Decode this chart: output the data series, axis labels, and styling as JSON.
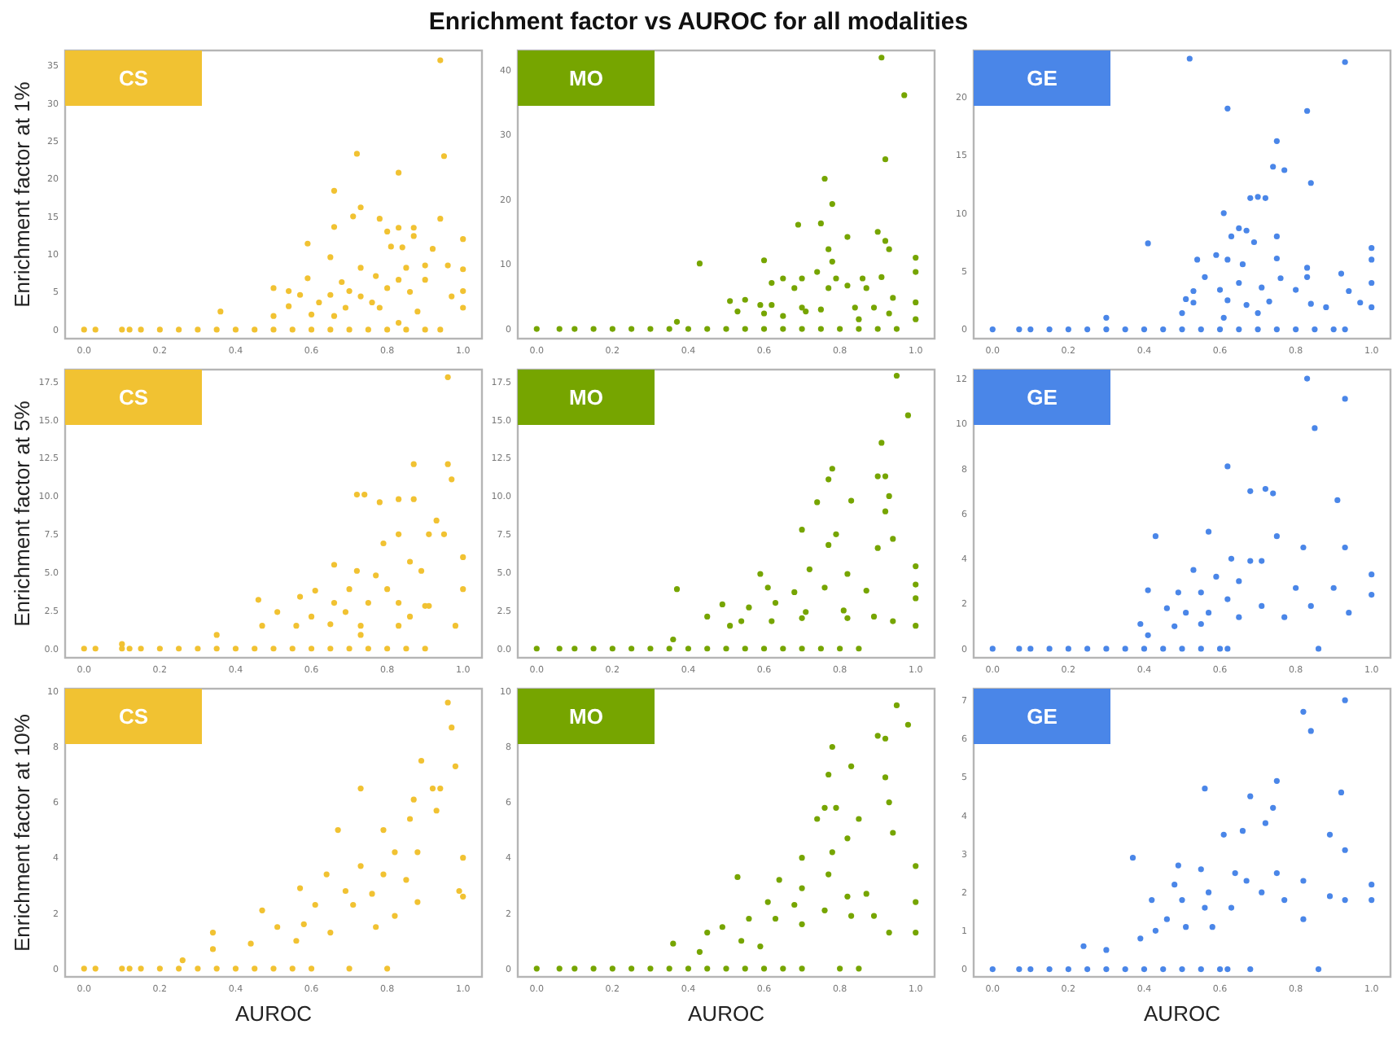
{
  "chart_data": [
    {
      "type": "scatter",
      "title": "CS",
      "annotations": [
        "Enrichment factor vs AUROC for all modalities"
      ],
      "ylabel": "Enrichment factor at 1%",
      "marker": "circle",
      "xlim": [
        -0.05,
        1.05
      ],
      "xticks": [
        {
          "value": 0,
          "label": "0.0"
        },
        {
          "value": 0.2,
          "label": "0.2"
        },
        {
          "value": 0.4,
          "label": "0.4"
        },
        {
          "value": 0.6,
          "label": "0.6"
        },
        {
          "value": 0.8,
          "label": "0.8"
        },
        {
          "value": 1,
          "label": "1.0"
        }
      ],
      "ylim": [
        -1.2,
        37
      ],
      "yticks": [
        0,
        5,
        10,
        15,
        20,
        25,
        30,
        35
      ],
      "series": [
        {
          "color": "#f1c232",
          "x": [
            0.94,
            0.95,
            0.72,
            0.83,
            0.66,
            0.73,
            0.71,
            0.78,
            0.94,
            0.83,
            0.8,
            0.87,
            1.0,
            0.66,
            0.59,
            0.81,
            0.87,
            0.92,
            0.65,
            0.84,
            0.73,
            0.85,
            0.9,
            0.96,
            1.0,
            0.59,
            0.77,
            0.83,
            0.9,
            0.68,
            0.5,
            0.54,
            0.65,
            0.7,
            0.73,
            0.8,
            0.86,
            0.97,
            1.0,
            0.54,
            0.57,
            0.62,
            0.69,
            0.76,
            0.88,
            0.36,
            0.5,
            0.6,
            0.66,
            0.78,
            0.83,
            1.0,
            0,
            0.03,
            0.1,
            0.12,
            0.15,
            0.2,
            0.25,
            0.3,
            0.35,
            0.4,
            0.45,
            0.5,
            0.55,
            0.6,
            0.65,
            0.7,
            0.75,
            0.8,
            0.85,
            0.9,
            0.94
          ],
          "values": [
            35.7,
            23,
            23.3,
            20.8,
            18.4,
            16.2,
            15,
            14.7,
            14.7,
            13.5,
            13,
            13.5,
            12,
            13.6,
            11.4,
            11,
            12.4,
            10.7,
            9.6,
            10.9,
            8.2,
            8.2,
            8.5,
            8.5,
            8,
            6.8,
            7.1,
            6.6,
            6.6,
            6.3,
            5.5,
            5.1,
            4.6,
            5.1,
            4.4,
            5.5,
            5,
            4.4,
            5.1,
            3.1,
            4.6,
            3.6,
            2.9,
            3.6,
            2.4,
            2.4,
            1.8,
            2,
            1.8,
            2.9,
            0.9,
            2.9,
            0,
            0,
            0,
            0,
            0,
            0,
            0,
            0,
            0,
            0,
            0,
            0,
            0,
            0,
            0,
            0,
            0,
            0,
            0,
            0,
            0
          ]
        }
      ]
    },
    {
      "type": "scatter",
      "title": "MO",
      "marker": "circle",
      "xlim": [
        -0.05,
        1.05
      ],
      "xticks": [
        {
          "value": 0,
          "label": "0.0"
        },
        {
          "value": 0.2,
          "label": "0.2"
        },
        {
          "value": 0.4,
          "label": "0.4"
        },
        {
          "value": 0.6,
          "label": "0.6"
        },
        {
          "value": 0.8,
          "label": "0.8"
        },
        {
          "value": 1,
          "label": "1.0"
        }
      ],
      "ylim": [
        -1.5,
        43
      ],
      "yticks": [
        0,
        10,
        20,
        30,
        40
      ],
      "series": [
        {
          "color": "#76a500",
          "x": [
            0.91,
            0.97,
            0.92,
            0.76,
            0.78,
            0.69,
            0.75,
            0.9,
            0.82,
            0.92,
            0.77,
            0.93,
            0.43,
            0.6,
            1.0,
            0.78,
            0.65,
            0.7,
            0.74,
            0.79,
            0.86,
            0.91,
            1.0,
            0.62,
            0.68,
            0.77,
            0.82,
            0.87,
            0.51,
            0.55,
            0.59,
            0.62,
            0.7,
            0.75,
            0.84,
            0.89,
            0.94,
            1.0,
            0.53,
            0.6,
            0.65,
            0.71,
            0.85,
            0.93,
            1.0,
            0.37,
            0,
            0.06,
            0.1,
            0.15,
            0.2,
            0.25,
            0.3,
            0.35,
            0.4,
            0.45,
            0.5,
            0.55,
            0.6,
            0.65,
            0.7,
            0.75,
            0.8,
            0.85,
            0.9,
            0.95
          ],
          "values": [
            41.9,
            36.1,
            26.2,
            23.2,
            19.3,
            16.1,
            16.3,
            15,
            14.2,
            13.6,
            12.3,
            12.3,
            10.1,
            10.6,
            11,
            10.4,
            7.8,
            7.8,
            8.8,
            7.8,
            7.8,
            8,
            8.8,
            7.1,
            6.3,
            6.3,
            6.7,
            6.3,
            4.3,
            4.5,
            3.7,
            3.7,
            3.3,
            3,
            3.3,
            3.3,
            4.8,
            4.1,
            2.7,
            2.4,
            2,
            2.7,
            1.5,
            2.4,
            1.5,
            1.1,
            0,
            0,
            0,
            0,
            0,
            0,
            0,
            0,
            0,
            0,
            0,
            0,
            0,
            0,
            0,
            0,
            0,
            0,
            0,
            0
          ]
        }
      ]
    },
    {
      "type": "scatter",
      "title": "GE",
      "marker": "circle",
      "xlim": [
        -0.05,
        1.05
      ],
      "xticks": [
        {
          "value": 0,
          "label": "0.0"
        },
        {
          "value": 0.2,
          "label": "0.2"
        },
        {
          "value": 0.4,
          "label": "0.4"
        },
        {
          "value": 0.6,
          "label": "0.6"
        },
        {
          "value": 0.8,
          "label": "0.8"
        },
        {
          "value": 1,
          "label": "1.0"
        }
      ],
      "ylim": [
        -0.8,
        24
      ],
      "yticks": [
        0,
        5,
        10,
        15,
        20
      ],
      "series": [
        {
          "color": "#4a86e8",
          "x": [
            0.52,
            0.93,
            0.62,
            0.83,
            0.75,
            0.74,
            0.77,
            0.84,
            0.68,
            0.7,
            0.72,
            0.61,
            0.41,
            0.63,
            0.65,
            0.67,
            0.69,
            0.75,
            0.62,
            0.59,
            0.66,
            0.75,
            0.54,
            0.83,
            1.0,
            1.0,
            0.92,
            0.56,
            0.65,
            0.76,
            0.83,
            1.0,
            0.53,
            0.6,
            0.71,
            0.8,
            0.94,
            0.51,
            0.53,
            0.62,
            0.67,
            0.73,
            0.84,
            0.88,
            0.97,
            1.0,
            0.5,
            0.7,
            0.61,
            0.3,
            0,
            0.07,
            0.1,
            0.15,
            0.2,
            0.25,
            0.3,
            0.35,
            0.4,
            0.45,
            0.5,
            0.55,
            0.6,
            0.65,
            0.7,
            0.75,
            0.8,
            0.85,
            0.9,
            0.93
          ],
          "values": [
            23.3,
            23,
            19,
            18.8,
            16.2,
            14,
            13.7,
            12.6,
            11.3,
            11.4,
            11.3,
            10,
            7.4,
            8,
            8.7,
            8.5,
            7.5,
            8,
            6,
            6.4,
            5.6,
            6.1,
            6,
            5.3,
            7,
            6,
            4.8,
            4.5,
            4,
            4.4,
            4.5,
            4,
            3.3,
            3.4,
            3.6,
            3.4,
            3.3,
            2.6,
            2.3,
            2.5,
            2.1,
            2.4,
            2.2,
            1.9,
            2.3,
            1.9,
            1.4,
            1.4,
            1,
            1,
            0,
            0,
            0,
            0,
            0,
            0,
            0,
            0,
            0,
            0,
            0,
            0,
            0,
            0,
            0,
            0,
            0,
            0,
            0,
            0
          ]
        }
      ]
    },
    {
      "type": "scatter",
      "title": "CS",
      "ylabel": "Enrichment factor at 5%",
      "marker": "circle",
      "xlim": [
        -0.05,
        1.05
      ],
      "xticks": [
        {
          "value": 0,
          "label": "0.0"
        },
        {
          "value": 0.2,
          "label": "0.2"
        },
        {
          "value": 0.4,
          "label": "0.4"
        },
        {
          "value": 0.6,
          "label": "0.6"
        },
        {
          "value": 0.8,
          "label": "0.8"
        },
        {
          "value": 1,
          "label": "1.0"
        }
      ],
      "ylim": [
        -0.6,
        18.3
      ],
      "yticks": [
        {
          "value": 0,
          "label": "0.0"
        },
        {
          "value": 2.5,
          "label": "2.5"
        },
        {
          "value": 5,
          "label": "5.0"
        },
        {
          "value": 7.5,
          "label": "7.5"
        },
        {
          "value": 10,
          "label": "10.0"
        },
        {
          "value": 12.5,
          "label": "12.5"
        },
        {
          "value": 15,
          "label": "15.0"
        },
        {
          "value": 17.5,
          "label": "17.5"
        }
      ],
      "series": [
        {
          "color": "#f1c232",
          "x": [
            0.96,
            0.87,
            0.96,
            0.97,
            0.72,
            0.74,
            0.78,
            0.83,
            0.87,
            0.93,
            0.91,
            0.95,
            1.0,
            0.83,
            0.79,
            0.86,
            0.66,
            0.72,
            0.77,
            0.89,
            1.0,
            0.61,
            0.7,
            0.8,
            0.46,
            0.57,
            0.66,
            0.75,
            0.83,
            0.9,
            0.51,
            0.6,
            0.69,
            0.86,
            0.47,
            0.56,
            0.65,
            0.73,
            0.83,
            0.91,
            0.98,
            0.35,
            0.1,
            0.73,
            0,
            0.03,
            0.1,
            0.12,
            0.15,
            0.2,
            0.25,
            0.3,
            0.35,
            0.4,
            0.45,
            0.5,
            0.55,
            0.6,
            0.65,
            0.7,
            0.75,
            0.8,
            0.85,
            0.9
          ],
          "values": [
            17.8,
            12.1,
            12.1,
            11.1,
            10.1,
            10.1,
            9.6,
            9.8,
            9.8,
            8.4,
            7.5,
            7.5,
            6,
            7.5,
            6.9,
            5.7,
            5.5,
            5.1,
            4.8,
            5.1,
            3.9,
            3.8,
            3.9,
            3.9,
            3.2,
            3.4,
            3,
            3,
            3,
            2.8,
            2.4,
            2.1,
            2.4,
            2.1,
            1.5,
            1.5,
            1.6,
            1.5,
            1.5,
            2.8,
            1.5,
            0.9,
            0.3,
            0.9,
            0,
            0,
            0,
            0,
            0,
            0,
            0,
            0,
            0,
            0,
            0,
            0,
            0,
            0,
            0,
            0,
            0,
            0,
            0,
            0
          ]
        }
      ]
    },
    {
      "type": "scatter",
      "title": "MO",
      "marker": "circle",
      "xlim": [
        -0.05,
        1.05
      ],
      "xticks": [
        {
          "value": 0,
          "label": "0.0"
        },
        {
          "value": 0.2,
          "label": "0.2"
        },
        {
          "value": 0.4,
          "label": "0.4"
        },
        {
          "value": 0.6,
          "label": "0.6"
        },
        {
          "value": 0.8,
          "label": "0.8"
        },
        {
          "value": 1,
          "label": "1.0"
        }
      ],
      "ylim": [
        -0.6,
        18.3
      ],
      "yticks": [
        {
          "value": 0,
          "label": "0.0"
        },
        {
          "value": 2.5,
          "label": "2.5"
        },
        {
          "value": 5,
          "label": "5.0"
        },
        {
          "value": 7.5,
          "label": "7.5"
        },
        {
          "value": 10,
          "label": "10.0"
        },
        {
          "value": 12.5,
          "label": "12.5"
        },
        {
          "value": 15,
          "label": "15.0"
        },
        {
          "value": 17.5,
          "label": "17.5"
        }
      ],
      "series": [
        {
          "color": "#76a500",
          "x": [
            0.95,
            0.98,
            0.91,
            0.78,
            0.77,
            0.9,
            0.92,
            0.74,
            0.83,
            0.93,
            0.92,
            0.7,
            0.79,
            0.94,
            0.77,
            0.9,
            1.0,
            0.59,
            0.72,
            0.82,
            1.0,
            0.37,
            0.61,
            0.68,
            0.76,
            0.87,
            1.0,
            0.49,
            0.56,
            0.63,
            0.71,
            0.81,
            0.89,
            0.45,
            0.54,
            0.62,
            0.7,
            0.82,
            0.94,
            1.0,
            0.36,
            0.51,
            0,
            0.06,
            0.1,
            0.15,
            0.2,
            0.25,
            0.3,
            0.35,
            0.4,
            0.45,
            0.5,
            0.55,
            0.6,
            0.65,
            0.7,
            0.75,
            0.8,
            0.85
          ],
          "values": [
            17.9,
            15.3,
            13.5,
            11.8,
            11.1,
            11.3,
            11.3,
            9.6,
            9.7,
            10,
            9,
            7.8,
            7.5,
            7.2,
            6.8,
            6.6,
            5.4,
            4.9,
            5.2,
            4.9,
            4.2,
            3.9,
            4,
            3.7,
            4,
            3.8,
            3.3,
            2.9,
            2.7,
            3,
            2.4,
            2.5,
            2.1,
            2.1,
            1.8,
            1.8,
            2,
            2,
            1.8,
            1.5,
            0.6,
            1.5,
            0,
            0,
            0,
            0,
            0,
            0,
            0,
            0,
            0,
            0,
            0,
            0,
            0,
            0,
            0,
            0,
            0,
            0
          ]
        }
      ]
    },
    {
      "type": "scatter",
      "title": "GE",
      "marker": "circle",
      "xlim": [
        -0.05,
        1.05
      ],
      "xticks": [
        {
          "value": 0,
          "label": "0.0"
        },
        {
          "value": 0.2,
          "label": "0.2"
        },
        {
          "value": 0.4,
          "label": "0.4"
        },
        {
          "value": 0.6,
          "label": "0.6"
        },
        {
          "value": 0.8,
          "label": "0.8"
        },
        {
          "value": 1,
          "label": "1.0"
        }
      ],
      "ylim": [
        -0.4,
        12.4
      ],
      "yticks": [
        0,
        2,
        4,
        6,
        8,
        10,
        12
      ],
      "series": [
        {
          "color": "#4a86e8",
          "x": [
            0.83,
            0.93,
            0.85,
            0.62,
            0.72,
            0.68,
            0.74,
            0.91,
            0.57,
            0.75,
            0.82,
            0.93,
            0.43,
            0.63,
            0.68,
            0.71,
            1.0,
            0.53,
            0.59,
            0.65,
            0.8,
            0.9,
            1.0,
            0.41,
            0.49,
            0.55,
            0.62,
            0.71,
            0.84,
            0.94,
            0.46,
            0.51,
            0.57,
            0.65,
            0.77,
            0.39,
            0.48,
            0.55,
            0.41,
            0.86,
            0,
            0.07,
            0.1,
            0.15,
            0.2,
            0.25,
            0.3,
            0.35,
            0.4,
            0.45,
            0.5,
            0.55,
            0.6,
            0.62
          ],
          "values": [
            12,
            11.1,
            9.8,
            8.1,
            7.1,
            7,
            6.9,
            6.6,
            5.2,
            5,
            4.5,
            4.5,
            5,
            4,
            3.9,
            3.9,
            3.3,
            3.5,
            3.2,
            3,
            2.7,
            2.7,
            2.4,
            2.6,
            2.5,
            2.5,
            2.2,
            1.9,
            1.9,
            1.6,
            1.8,
            1.6,
            1.6,
            1.4,
            1.4,
            1.1,
            1,
            1.1,
            0.6,
            0,
            0,
            0,
            0,
            0,
            0,
            0,
            0,
            0,
            0,
            0,
            0,
            0,
            0,
            0
          ]
        }
      ]
    },
    {
      "type": "scatter",
      "title": "CS",
      "ylabel": "Enrichment factor at 10%",
      "xlabel": "AUROC",
      "marker": "circle",
      "xlim": [
        -0.05,
        1.05
      ],
      "xticks": [
        {
          "value": 0,
          "label": "0.0"
        },
        {
          "value": 0.2,
          "label": "0.2"
        },
        {
          "value": 0.4,
          "label": "0.4"
        },
        {
          "value": 0.6,
          "label": "0.6"
        },
        {
          "value": 0.8,
          "label": "0.8"
        },
        {
          "value": 1,
          "label": "1.0"
        }
      ],
      "ylim": [
        -0.3,
        10.1
      ],
      "yticks": [
        0,
        2,
        4,
        6,
        8,
        10
      ],
      "series": [
        {
          "color": "#f1c232",
          "x": [
            0.96,
            0.97,
            0.89,
            0.98,
            0.94,
            0.92,
            0.87,
            0.73,
            0.86,
            0.93,
            0.79,
            0.67,
            0.82,
            1.0,
            0.88,
            0.73,
            0.64,
            0.79,
            0.85,
            0.57,
            0.69,
            0.76,
            0.99,
            0.88,
            0.47,
            0.61,
            0.71,
            0.82,
            0.51,
            0.58,
            0.65,
            0.77,
            0.34,
            0.44,
            0.56,
            0.34,
            0.26,
            1.0,
            0,
            0.03,
            0.1,
            0.12,
            0.15,
            0.2,
            0.25,
            0.3,
            0.35,
            0.4,
            0.45,
            0.5,
            0.55,
            0.6,
            0.7,
            0.8
          ],
          "values": [
            9.6,
            8.7,
            7.5,
            7.3,
            6.5,
            6.5,
            6.1,
            6.5,
            5.4,
            5.7,
            5,
            5,
            4.2,
            4,
            4.2,
            3.7,
            3.4,
            3.4,
            3.2,
            2.9,
            2.8,
            2.7,
            2.8,
            2.4,
            2.1,
            2.3,
            2.3,
            1.9,
            1.5,
            1.6,
            1.3,
            1.5,
            1.3,
            0.9,
            1,
            0.7,
            0.3,
            2.6,
            0,
            0,
            0,
            0,
            0,
            0,
            0,
            0,
            0,
            0,
            0,
            0,
            0,
            0,
            0,
            0
          ]
        }
      ]
    },
    {
      "type": "scatter",
      "title": "MO",
      "xlabel": "AUROC",
      "marker": "circle",
      "xlim": [
        -0.05,
        1.05
      ],
      "xticks": [
        {
          "value": 0,
          "label": "0.0"
        },
        {
          "value": 0.2,
          "label": "0.2"
        },
        {
          "value": 0.4,
          "label": "0.4"
        },
        {
          "value": 0.6,
          "label": "0.6"
        },
        {
          "value": 0.8,
          "label": "0.8"
        },
        {
          "value": 1,
          "label": "1.0"
        }
      ],
      "ylim": [
        -0.3,
        10.1
      ],
      "yticks": [
        0,
        2,
        4,
        6,
        8,
        10
      ],
      "series": [
        {
          "color": "#76a500",
          "x": [
            0.95,
            0.98,
            0.9,
            0.92,
            0.78,
            0.83,
            0.92,
            0.93,
            0.77,
            0.76,
            0.79,
            0.85,
            0.74,
            0.82,
            0.94,
            0.7,
            0.78,
            0.77,
            1.0,
            0.53,
            0.64,
            0.7,
            0.82,
            0.87,
            1.0,
            0.61,
            0.68,
            0.76,
            0.83,
            0.89,
            0.56,
            0.63,
            0.7,
            1.0,
            0.93,
            0.49,
            0.54,
            0.59,
            0.45,
            0.36,
            0.43,
            0,
            0.06,
            0.1,
            0.15,
            0.2,
            0.25,
            0.3,
            0.35,
            0.4,
            0.45,
            0.5,
            0.55,
            0.6,
            0.65,
            0.7,
            0.8,
            0.85
          ],
          "values": [
            9.5,
            8.8,
            8.4,
            8.3,
            8,
            7.3,
            6.9,
            6,
            7,
            5.8,
            5.8,
            5.4,
            5.4,
            4.7,
            4.9,
            4,
            4.2,
            3.4,
            3.7,
            3.3,
            3.2,
            2.9,
            2.6,
            2.7,
            2.4,
            2.4,
            2.3,
            2.1,
            1.9,
            1.9,
            1.8,
            1.8,
            1.6,
            1.3,
            1.3,
            1.5,
            1,
            0.8,
            1.3,
            0.9,
            0.6,
            0,
            0,
            0,
            0,
            0,
            0,
            0,
            0,
            0,
            0,
            0,
            0,
            0,
            0,
            0,
            0,
            0
          ]
        }
      ]
    },
    {
      "type": "scatter",
      "title": "GE",
      "xlabel": "AUROC",
      "marker": "circle",
      "xlim": [
        -0.05,
        1.05
      ],
      "xticks": [
        {
          "value": 0,
          "label": "0.0"
        },
        {
          "value": 0.2,
          "label": "0.2"
        },
        {
          "value": 0.4,
          "label": "0.4"
        },
        {
          "value": 0.6,
          "label": "0.6"
        },
        {
          "value": 0.8,
          "label": "0.8"
        },
        {
          "value": 1,
          "label": "1.0"
        }
      ],
      "ylim": [
        -0.2,
        7.3
      ],
      "yticks": [
        0,
        1,
        2,
        3,
        4,
        5,
        6,
        7
      ],
      "series": [
        {
          "color": "#4a86e8",
          "x": [
            0.93,
            0.82,
            0.84,
            0.92,
            0.75,
            0.56,
            0.68,
            0.74,
            0.72,
            0.66,
            0.61,
            0.89,
            0.93,
            0.37,
            0.49,
            0.55,
            0.64,
            0.67,
            0.75,
            0.82,
            1.0,
            0.48,
            0.57,
            0.71,
            0.89,
            0.42,
            0.5,
            0.56,
            0.63,
            0.77,
            0.82,
            0.93,
            1.0,
            0.46,
            0.51,
            0.58,
            0.39,
            0.43,
            0.24,
            0.3,
            0,
            0.07,
            0.1,
            0.15,
            0.2,
            0.25,
            0.3,
            0.35,
            0.4,
            0.45,
            0.5,
            0.55,
            0.6,
            0.62,
            0.68,
            0.86
          ],
          "values": [
            7,
            6.7,
            6.2,
            4.6,
            4.9,
            4.7,
            4.5,
            4.2,
            3.8,
            3.6,
            3.5,
            3.5,
            3.1,
            2.9,
            2.7,
            2.6,
            2.5,
            2.3,
            2.5,
            2.3,
            2.2,
            2.2,
            2,
            2,
            1.9,
            1.8,
            1.8,
            1.6,
            1.6,
            1.8,
            1.3,
            1.8,
            1.8,
            1.3,
            1.1,
            1.1,
            0.8,
            1,
            0.6,
            0.5,
            0,
            0,
            0,
            0,
            0,
            0,
            0,
            0,
            0,
            0,
            0,
            0,
            0,
            0,
            0,
            0
          ]
        }
      ]
    }
  ]
}
